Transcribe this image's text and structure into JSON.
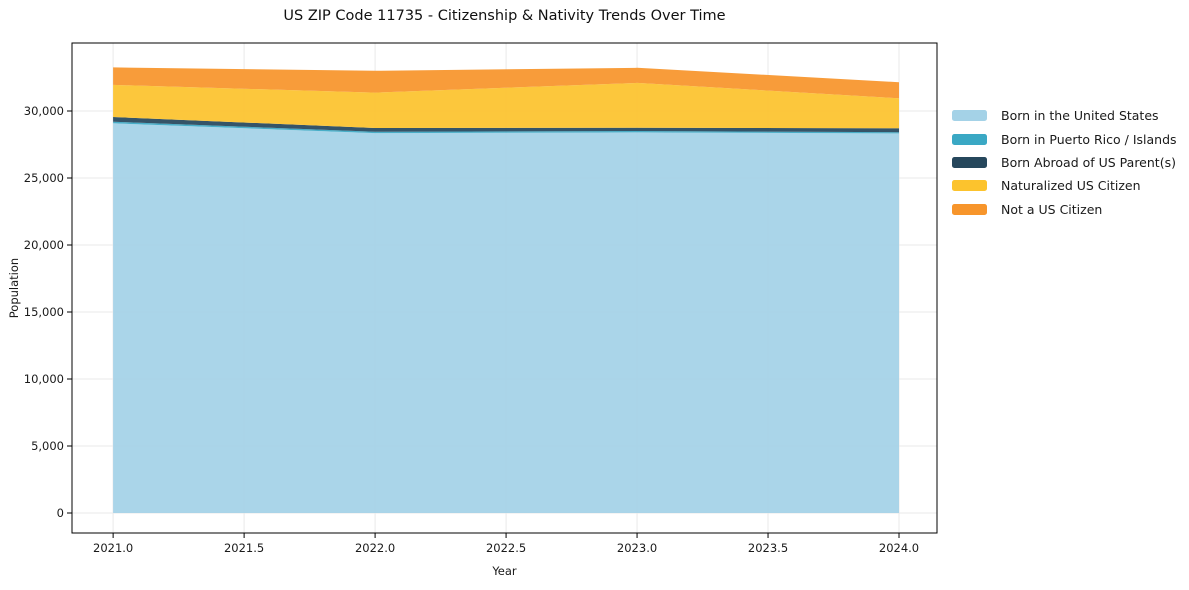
{
  "title": "US ZIP Code 11735 - Citizenship & Nativity Trends Over Time",
  "axes": {
    "x_label": "Year",
    "y_label": "Population",
    "x_tick_labels": [
      "2021.0",
      "2021.5",
      "2022.0",
      "2022.5",
      "2023.0",
      "2023.5",
      "2024.0"
    ],
    "y_tick_labels": [
      "0",
      "5,000",
      "10,000",
      "15,000",
      "20,000",
      "25,000",
      "30,000"
    ]
  },
  "legend": {
    "items": [
      {
        "label": "Born in the United States",
        "color": "#A4D2E7"
      },
      {
        "label": "Born in Puerto Rico / Islands",
        "color": "#3AA8C4"
      },
      {
        "label": "Born Abroad of US Parent(s)",
        "color": "#26475C"
      },
      {
        "label": "Naturalized US Citizen",
        "color": "#FCC32D"
      },
      {
        "label": "Not a US Citizen",
        "color": "#F7952B"
      }
    ]
  },
  "chart_data": {
    "type": "area",
    "stacked": true,
    "title": "US ZIP Code 11735 - Citizenship & Nativity Trends Over Time",
    "xlabel": "Year",
    "ylabel": "Population",
    "x": [
      2021,
      2022,
      2023,
      2024
    ],
    "series": [
      {
        "name": "Born in the United States",
        "color": "#A4D2E7",
        "values": [
          29080,
          28350,
          28400,
          28330
        ]
      },
      {
        "name": "Born in Puerto Rico / Islands",
        "color": "#3AA8C4",
        "values": [
          120,
          100,
          110,
          90
        ]
      },
      {
        "name": "Born Abroad of US Parent(s)",
        "color": "#26475C",
        "values": [
          350,
          280,
          240,
          290
        ]
      },
      {
        "name": "Naturalized US Citizen",
        "color": "#FCC32D",
        "values": [
          2400,
          2640,
          3350,
          2240
        ]
      },
      {
        "name": "Not a US Citizen",
        "color": "#F7952B",
        "values": [
          1300,
          1630,
          1120,
          1200
        ]
      }
    ],
    "stacked_totals": [
      33250,
      33000,
      33220,
      32150
    ],
    "x_ticks": [
      2021,
      2021.5,
      2022,
      2022.5,
      2023,
      2023.5,
      2024
    ],
    "y_ticks": [
      0,
      5000,
      10000,
      15000,
      20000,
      25000,
      30000
    ],
    "xlim": [
      2020.843,
      2024.145
    ],
    "ylim": [
      -1493,
      35074
    ],
    "grid": true,
    "legend_position": "right"
  }
}
